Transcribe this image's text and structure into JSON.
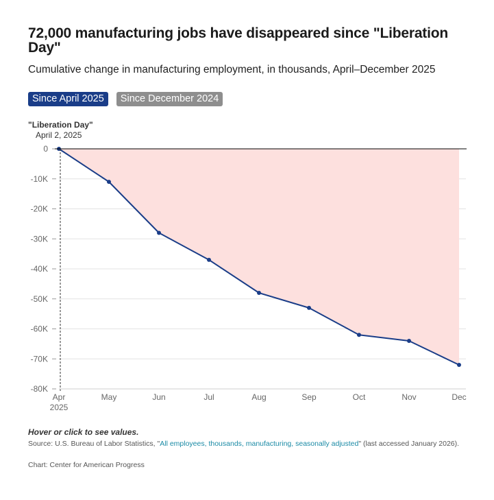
{
  "header": {
    "title": "72,000 manufacturing jobs have disappeared since \"Liberation Day\"",
    "subtitle": "Cumulative change in manufacturing employment, in thousands, April–December 2025"
  },
  "tabs": [
    {
      "label": "Since April 2025",
      "active": true
    },
    {
      "label": "Since December 2024",
      "active": false
    }
  ],
  "annotation": {
    "title": "\"Liberation Day\"",
    "date": "April 2, 2025"
  },
  "chart_data": {
    "type": "area",
    "title": "72,000 manufacturing jobs have disappeared since \"Liberation Day\"",
    "categories": [
      "Apr",
      "May",
      "Jun",
      "Jul",
      "Aug",
      "Sep",
      "Oct",
      "Nov",
      "Dec"
    ],
    "x_first_sublabel": "2025",
    "series": [
      {
        "name": "Cumulative change in manufacturing employment",
        "values": [
          0,
          -11000,
          -28000,
          -37000,
          -48000,
          -53000,
          -62000,
          -64000,
          -72000
        ]
      }
    ],
    "ylim": [
      -80000,
      0
    ],
    "yticks": [
      0,
      -10000,
      -20000,
      -30000,
      -40000,
      -50000,
      -60000,
      -70000,
      -80000
    ],
    "ytick_labels": [
      "0",
      "-10K",
      "-20K",
      "-30K",
      "-40K",
      "-50K",
      "-60K",
      "-70K",
      "-80K"
    ],
    "grid": true,
    "line_color": "#1a3d88",
    "fill_color": "#fde0de",
    "zero_line_color": "#000000"
  },
  "footer": {
    "note": "Hover or click to see values.",
    "source_prefix": "Source: U.S. Bureau of Labor Statistics, \"",
    "source_link": "All employees, thousands, manufacturing, seasonally adjusted",
    "source_suffix": "\" (last accessed January 2026).",
    "credit": "Chart: Center for American Progress"
  }
}
